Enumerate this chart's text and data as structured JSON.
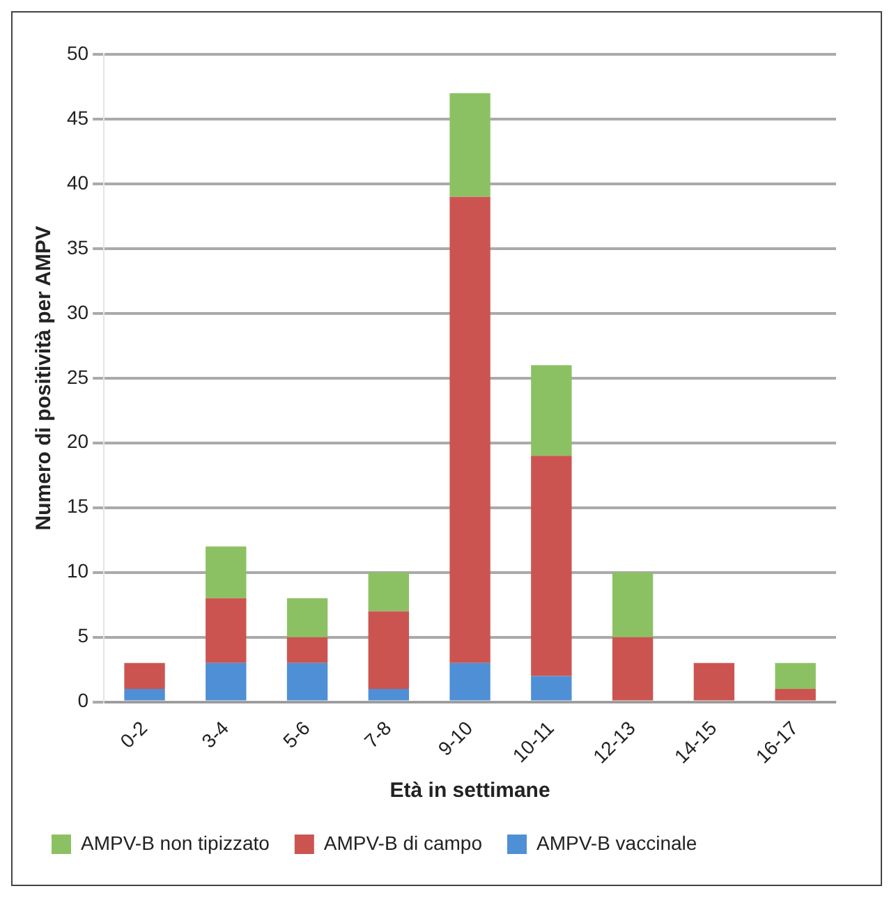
{
  "chart_data": {
    "type": "bar",
    "stacked": true,
    "xlabel": "Età in settimane",
    "ylabel": "Numero di positività per AMPV",
    "categories": [
      "0-2",
      "3-4",
      "5-6",
      "7-8",
      "9-10",
      "10-11",
      "12-13",
      "14-15",
      "16-17"
    ],
    "series": [
      {
        "name": "AMPV-B vaccinale",
        "color": "#4f8fd6",
        "values": [
          1,
          3,
          3,
          1,
          3,
          2,
          0,
          0,
          0
        ]
      },
      {
        "name": "AMPV-B di campo",
        "color": "#cc5450",
        "values": [
          2,
          5,
          2,
          6,
          36,
          17,
          5,
          3,
          1
        ]
      },
      {
        "name": "AMPV-B non tipizzato",
        "color": "#8cc163",
        "values": [
          0,
          4,
          3,
          3,
          8,
          7,
          5,
          0,
          2
        ]
      }
    ],
    "ylim": [
      0,
      50
    ],
    "yticks": [
      0,
      5,
      10,
      15,
      20,
      25,
      30,
      35,
      40,
      45,
      50
    ],
    "grid": "y",
    "legend": "bottom"
  }
}
